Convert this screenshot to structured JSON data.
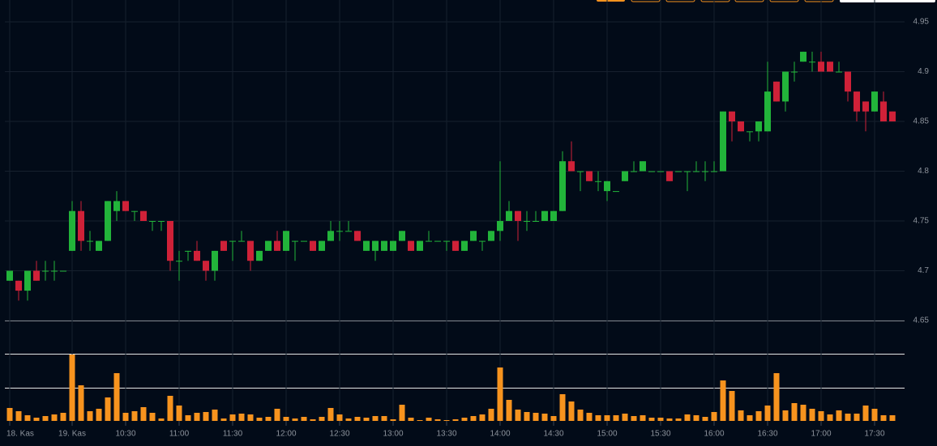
{
  "chart_data": {
    "type": "candlestick",
    "categories": [
      "18. Kas",
      null,
      null,
      null,
      null,
      null,
      null,
      "19. Kas",
      null,
      null,
      null,
      null,
      null,
      "10:30",
      null,
      null,
      null,
      null,
      null,
      "11:00",
      null,
      null,
      null,
      null,
      null,
      "11:30",
      null,
      null,
      null,
      null,
      null,
      "12:00",
      null,
      null,
      null,
      null,
      null,
      "12:30",
      null,
      null,
      null,
      null,
      null,
      "13:00",
      null,
      null,
      null,
      null,
      null,
      "13:30",
      null,
      null,
      null,
      null,
      null,
      "14:00",
      null,
      null,
      null,
      null,
      null,
      "14:30",
      null,
      null,
      null,
      null,
      null,
      "15:00",
      null,
      null,
      null,
      null,
      null,
      "15:30",
      null,
      null,
      null,
      null,
      null,
      "16:00",
      null,
      null,
      null,
      null,
      null,
      "16:30",
      null,
      null,
      null,
      null,
      null,
      "17:00",
      null,
      null,
      null,
      null,
      null,
      "17:30",
      null,
      null
    ],
    "open": [
      4.69,
      4.69,
      4.68,
      4.7,
      4.7,
      4.7,
      4.7,
      4.72,
      4.76,
      4.73,
      4.72,
      4.73,
      4.76,
      4.77,
      4.76,
      4.76,
      4.75,
      4.75,
      4.75,
      4.71,
      4.72,
      4.72,
      4.71,
      4.7,
      4.73,
      4.73,
      4.73,
      4.73,
      4.71,
      4.72,
      4.73,
      4.72,
      4.73,
      4.73,
      4.73,
      4.72,
      4.73,
      4.74,
      4.74,
      4.74,
      4.72,
      4.72,
      4.72,
      4.72,
      4.73,
      4.73,
      4.72,
      4.73,
      4.73,
      4.73,
      4.73,
      4.72,
      4.73,
      4.73,
      4.73,
      4.74,
      4.75,
      4.76,
      4.75,
      4.75,
      4.75,
      4.75,
      4.76,
      4.81,
      4.8,
      4.8,
      4.79,
      4.78,
      4.78,
      4.79,
      4.8,
      4.8,
      4.8,
      4.8,
      4.8,
      4.8,
      4.8,
      4.8,
      4.8,
      4.8,
      4.8,
      4.86,
      4.85,
      4.84,
      4.84,
      4.84,
      4.89,
      4.87,
      4.9,
      4.91,
      4.91,
      4.91,
      4.91,
      4.9,
      4.9,
      4.88,
      4.87,
      4.86,
      4.87,
      4.86
    ],
    "high": [
      4.7,
      4.69,
      4.7,
      4.71,
      4.71,
      4.71,
      4.7,
      4.77,
      4.77,
      4.74,
      4.73,
      4.77,
      4.78,
      4.77,
      4.76,
      4.76,
      4.75,
      4.75,
      4.75,
      4.72,
      4.72,
      4.73,
      4.71,
      4.72,
      4.73,
      4.73,
      4.74,
      4.73,
      4.72,
      4.73,
      4.74,
      4.74,
      4.73,
      4.73,
      4.73,
      4.73,
      4.75,
      4.75,
      4.75,
      4.74,
      4.73,
      4.73,
      4.73,
      4.73,
      4.74,
      4.73,
      4.73,
      4.74,
      4.73,
      4.73,
      4.73,
      4.73,
      4.74,
      4.73,
      4.74,
      4.81,
      4.77,
      4.76,
      4.76,
      4.76,
      4.76,
      4.76,
      4.82,
      4.83,
      4.8,
      4.8,
      4.8,
      4.79,
      4.78,
      4.8,
      4.81,
      4.81,
      4.8,
      4.8,
      4.8,
      4.8,
      4.8,
      4.81,
      4.81,
      4.81,
      4.86,
      4.86,
      4.85,
      4.84,
      4.85,
      4.91,
      4.89,
      4.9,
      4.91,
      4.92,
      4.92,
      4.92,
      4.91,
      4.91,
      4.9,
      4.88,
      4.87,
      4.88,
      4.88,
      4.86
    ],
    "low": [
      4.69,
      4.67,
      4.67,
      4.69,
      4.69,
      4.69,
      4.7,
      4.72,
      4.72,
      4.72,
      4.72,
      4.73,
      4.75,
      4.76,
      4.75,
      4.75,
      4.74,
      4.74,
      4.7,
      4.69,
      4.71,
      4.71,
      4.69,
      4.69,
      4.72,
      4.71,
      4.73,
      4.7,
      4.71,
      4.72,
      4.72,
      4.72,
      4.71,
      4.73,
      4.72,
      4.72,
      4.73,
      4.73,
      4.74,
      4.73,
      4.72,
      4.71,
      4.72,
      4.72,
      4.73,
      4.72,
      4.72,
      4.73,
      4.73,
      4.72,
      4.72,
      4.72,
      4.73,
      4.72,
      4.73,
      4.73,
      4.75,
      4.73,
      4.74,
      4.75,
      4.75,
      4.75,
      4.76,
      4.8,
      4.78,
      4.79,
      4.78,
      4.77,
      4.78,
      4.79,
      4.8,
      4.8,
      4.8,
      4.8,
      4.79,
      4.8,
      4.78,
      4.8,
      4.79,
      4.8,
      4.8,
      4.83,
      4.84,
      4.83,
      4.83,
      4.84,
      4.87,
      4.86,
      4.89,
      4.91,
      4.9,
      4.9,
      4.9,
      4.9,
      4.87,
      4.85,
      4.84,
      4.86,
      4.85,
      4.85
    ],
    "close": [
      4.7,
      4.68,
      4.7,
      4.69,
      4.7,
      4.7,
      4.7,
      4.76,
      4.73,
      4.73,
      4.73,
      4.77,
      4.77,
      4.76,
      4.76,
      4.75,
      4.75,
      4.75,
      4.71,
      4.71,
      4.72,
      4.71,
      4.7,
      4.72,
      4.72,
      4.73,
      4.73,
      4.71,
      4.72,
      4.73,
      4.72,
      4.74,
      4.73,
      4.73,
      4.72,
      4.73,
      4.74,
      4.74,
      4.74,
      4.73,
      4.73,
      4.73,
      4.73,
      4.73,
      4.74,
      4.72,
      4.73,
      4.73,
      4.73,
      4.73,
      4.72,
      4.73,
      4.74,
      4.73,
      4.74,
      4.75,
      4.76,
      4.75,
      4.75,
      4.75,
      4.76,
      4.76,
      4.81,
      4.8,
      4.8,
      4.79,
      4.79,
      4.79,
      4.78,
      4.8,
      4.8,
      4.81,
      4.8,
      4.8,
      4.79,
      4.8,
      4.8,
      4.8,
      4.8,
      4.8,
      4.86,
      4.85,
      4.84,
      4.84,
      4.85,
      4.88,
      4.87,
      4.9,
      4.9,
      4.92,
      4.91,
      4.9,
      4.9,
      4.9,
      4.88,
      4.86,
      4.86,
      4.88,
      4.85,
      4.85
    ],
    "volume": [
      16,
      12,
      7,
      4,
      6,
      8,
      10,
      82,
      44,
      12,
      15,
      29,
      59,
      10,
      12,
      17,
      10,
      3,
      31,
      19,
      7,
      10,
      11,
      14,
      3,
      8,
      9,
      8,
      4,
      5,
      15,
      5,
      3,
      5,
      2,
      5,
      16,
      8,
      3,
      5,
      4,
      6,
      6,
      2,
      20,
      4,
      1,
      4,
      2,
      1,
      2,
      4,
      6,
      8,
      15,
      66,
      26,
      14,
      11,
      10,
      9,
      6,
      33,
      24,
      14,
      10,
      7,
      7,
      7,
      9,
      6,
      7,
      4,
      4,
      3,
      3,
      8,
      7,
      5,
      11,
      50,
      37,
      13,
      7,
      12,
      19,
      59,
      13,
      22,
      20,
      15,
      12,
      8,
      13,
      9,
      9,
      19,
      15,
      7,
      7
    ],
    "up_color": "#22b43a",
    "down_color": "#cf2138",
    "volume_color": "#f7931e",
    "ylim": [
      4.65,
      4.95
    ],
    "yticks": [
      4.65,
      4.7,
      4.75,
      4.8,
      4.85,
      4.9,
      4.95
    ],
    "grid": true
  }
}
